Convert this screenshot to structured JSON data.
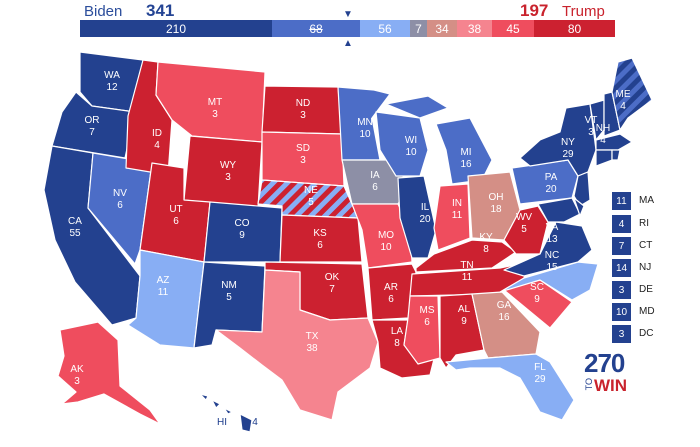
{
  "header": {
    "dem_name": "Biden",
    "dem_total": "341",
    "rep_total": "197",
    "rep_name": "Trump"
  },
  "bar": [
    {
      "value": "210",
      "color": "#23418f"
    },
    {
      "value": "68",
      "color": "#4c6dc7"
    },
    {
      "value": "56",
      "color": "#88aef4"
    },
    {
      "value": "7",
      "color": "#8d8fa6"
    },
    {
      "value": "34",
      "color": "#d48f86"
    },
    {
      "value": "38",
      "color": "#f5848f"
    },
    {
      "value": "45",
      "color": "#ef4d5e"
    },
    {
      "value": "80",
      "color": "#cc2130"
    }
  ],
  "colors": {
    "safe_d": "#23418f",
    "likely_d": "#4c6dc7",
    "lean_d": "#88aef4",
    "tossup_tilt_d": "#8d8fa6",
    "tossup_tilt_r": "#d48f86",
    "lean_r": "#f5848f",
    "likely_r": "#ef4d5e",
    "safe_r": "#cc2130"
  },
  "states": [
    {
      "abbr": "WA",
      "ev": "12"
    },
    {
      "abbr": "OR",
      "ev": "7"
    },
    {
      "abbr": "CA",
      "ev": "55"
    },
    {
      "abbr": "NV",
      "ev": "6"
    },
    {
      "abbr": "ID",
      "ev": "4"
    },
    {
      "abbr": "MT",
      "ev": "3"
    },
    {
      "abbr": "WY",
      "ev": "3"
    },
    {
      "abbr": "UT",
      "ev": "6"
    },
    {
      "abbr": "AZ",
      "ev": "11"
    },
    {
      "abbr": "CO",
      "ev": "9"
    },
    {
      "abbr": "NM",
      "ev": "5"
    },
    {
      "abbr": "ND",
      "ev": "3"
    },
    {
      "abbr": "SD",
      "ev": "3"
    },
    {
      "abbr": "NE",
      "ev": "5"
    },
    {
      "abbr": "KS",
      "ev": "6"
    },
    {
      "abbr": "OK",
      "ev": "7"
    },
    {
      "abbr": "TX",
      "ev": "38"
    },
    {
      "abbr": "MN",
      "ev": "10"
    },
    {
      "abbr": "IA",
      "ev": "6"
    },
    {
      "abbr": "MO",
      "ev": "10"
    },
    {
      "abbr": "AR",
      "ev": "6"
    },
    {
      "abbr": "LA",
      "ev": "8"
    },
    {
      "abbr": "WI",
      "ev": "10"
    },
    {
      "abbr": "IL",
      "ev": "20"
    },
    {
      "abbr": "MI",
      "ev": "16"
    },
    {
      "abbr": "IN",
      "ev": "11"
    },
    {
      "abbr": "OH",
      "ev": "18"
    },
    {
      "abbr": "KY",
      "ev": "8"
    },
    {
      "abbr": "TN",
      "ev": "11"
    },
    {
      "abbr": "MS",
      "ev": "6"
    },
    {
      "abbr": "AL",
      "ev": "9"
    },
    {
      "abbr": "GA",
      "ev": "16"
    },
    {
      "abbr": "FL",
      "ev": "29"
    },
    {
      "abbr": "SC",
      "ev": "9"
    },
    {
      "abbr": "NC",
      "ev": "15"
    },
    {
      "abbr": "VA",
      "ev": "13"
    },
    {
      "abbr": "WV",
      "ev": "5"
    },
    {
      "abbr": "PA",
      "ev": "20"
    },
    {
      "abbr": "NY",
      "ev": "29"
    },
    {
      "abbr": "VT",
      "ev": "3"
    },
    {
      "abbr": "NH",
      "ev": "4"
    },
    {
      "abbr": "ME",
      "ev": "4"
    },
    {
      "abbr": "AK",
      "ev": "3"
    },
    {
      "abbr": "HI",
      "ev": "4"
    }
  ],
  "small_states": [
    {
      "ev": "11",
      "abbr": "MA"
    },
    {
      "ev": "4",
      "abbr": "RI"
    },
    {
      "ev": "7",
      "abbr": "CT"
    },
    {
      "ev": "14",
      "abbr": "NJ"
    },
    {
      "ev": "3",
      "abbr": "DE"
    },
    {
      "ev": "10",
      "abbr": "MD"
    },
    {
      "ev": "3",
      "abbr": "DC"
    }
  ],
  "logo": {
    "number": "270",
    "to": "TO",
    "win": "WIN"
  }
}
